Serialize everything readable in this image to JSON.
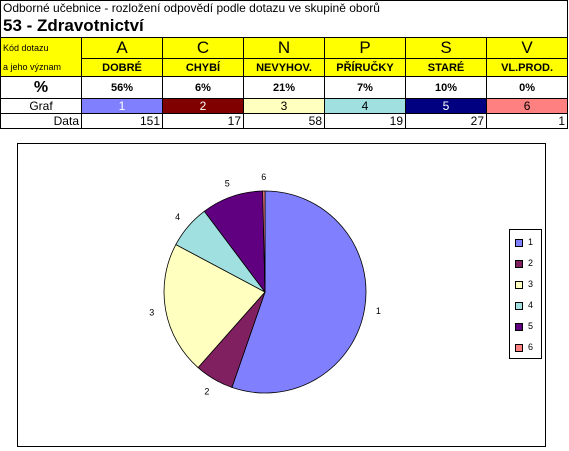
{
  "header": {
    "subtitle": "Odborné učebnice - rozložení odpovědí podle dotazu ve skupině oborů",
    "title": "53 - Zdravotnictví"
  },
  "row_labels": {
    "kod_line1": "Kód dotazu",
    "kod_line2": "a jeho význam",
    "percent": "%",
    "graf": "Graf",
    "data": "Data"
  },
  "columns": [
    {
      "code": "A",
      "meaning": "DOBRÉ",
      "percent": "56%",
      "graf": "1",
      "data": "151",
      "color": "#8080ff",
      "graf_text_color": "#ffffff"
    },
    {
      "code": "C",
      "meaning": "CHYBÍ",
      "percent": "6%",
      "graf": "2",
      "data": "17",
      "color": "#800000",
      "graf_text_color": "#ffffff"
    },
    {
      "code": "N",
      "meaning": "NEVYHOV.",
      "percent": "21%",
      "graf": "3",
      "data": "58",
      "color": "#ffffc0",
      "graf_text_color": "#000000"
    },
    {
      "code": "P",
      "meaning": "PŘÍRUČKY",
      "percent": "7%",
      "graf": "4",
      "data": "19",
      "color": "#a0e0e0",
      "graf_text_color": "#000000"
    },
    {
      "code": "S",
      "meaning": "STARÉ",
      "percent": "10%",
      "graf": "5",
      "data": "27",
      "color": "#000080",
      "graf_text_color": "#ffffff"
    },
    {
      "code": "V",
      "meaning": "VL.PROD.",
      "percent": "0%",
      "graf": "6",
      "data": "1",
      "color": "#ff8080",
      "graf_text_color": "#000000"
    }
  ],
  "chart_data": {
    "type": "pie",
    "categories": [
      "1",
      "2",
      "3",
      "4",
      "5",
      "6"
    ],
    "values": [
      151,
      17,
      58,
      19,
      27,
      1
    ],
    "colors": [
      "#8080ff",
      "#802060",
      "#ffffc0",
      "#a0e0e0",
      "#600080",
      "#ff8080"
    ],
    "slice_labels": [
      "1",
      "2",
      "3",
      "4",
      "5",
      "6"
    ],
    "legend": [
      "1",
      "2",
      "3",
      "4",
      "5",
      "6"
    ],
    "legend_position": "right"
  }
}
